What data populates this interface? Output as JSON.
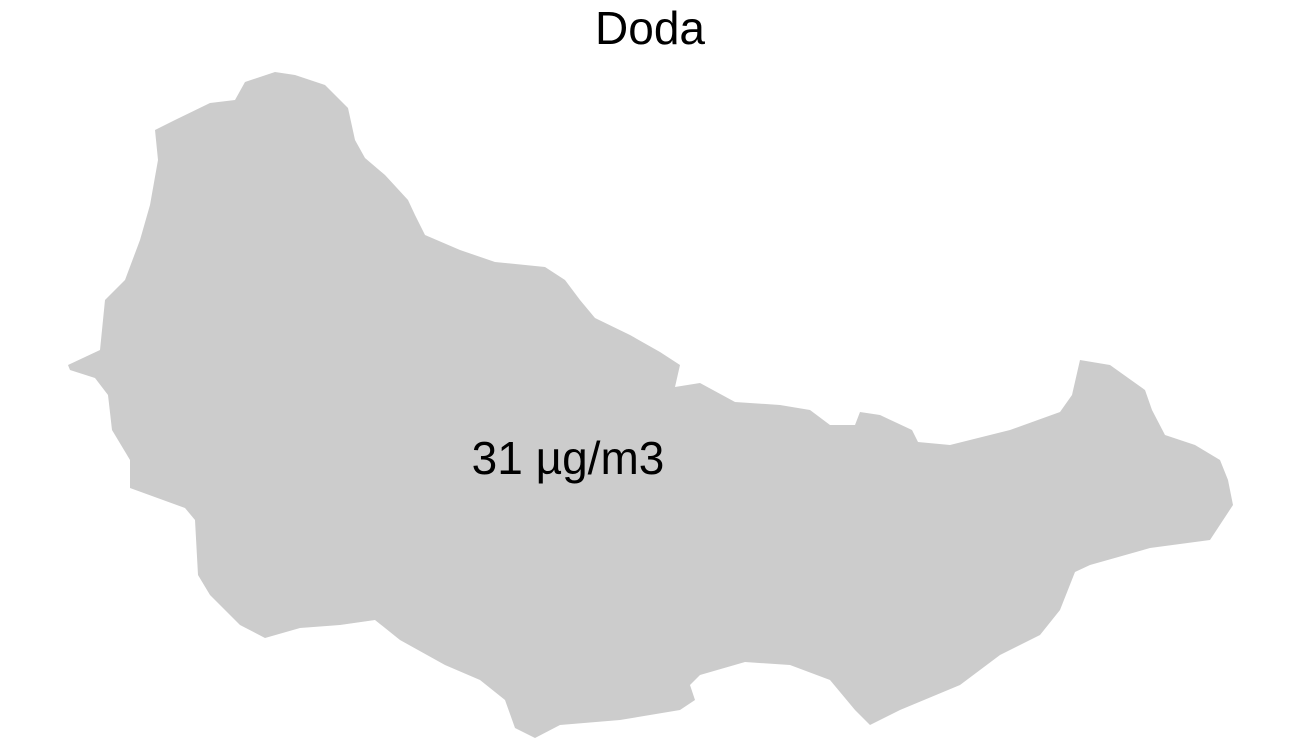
{
  "map": {
    "title": "Doda",
    "region": {
      "label": "31 µg/m3"
    }
  }
}
